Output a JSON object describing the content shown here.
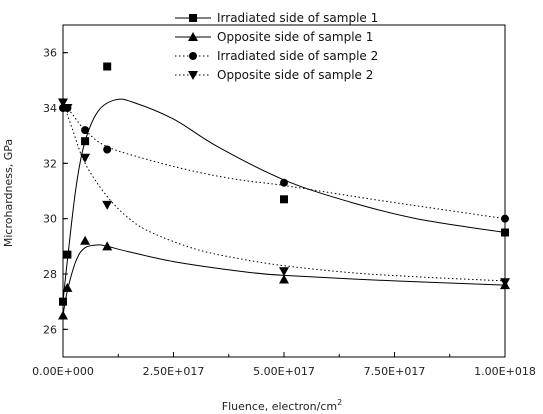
{
  "chart_data": {
    "type": "scatter",
    "title": "",
    "xlabel": "Fluence, electron/cm",
    "xlabel_superscript": "2",
    "ylabel": "Microhardness, GPa",
    "xlim": [
      0,
      1e+18
    ],
    "ylim": [
      25,
      37
    ],
    "x_ticks": [
      0,
      2.5e+17,
      5e+17,
      7.5e+17,
      1e+18
    ],
    "x_tick_labels": [
      "0.00E+000",
      "2.50E+017",
      "5.00E+017",
      "7.50E+017",
      "1.00E+018"
    ],
    "y_ticks": [
      26,
      28,
      30,
      32,
      34,
      36
    ],
    "y_tick_labels": [
      "26",
      "28",
      "30",
      "32",
      "34",
      "36"
    ],
    "grid": false,
    "legend_position": "top",
    "series": [
      {
        "name": "Irradiated side of sample 1",
        "marker": "square",
        "line_style": "solid",
        "x": [
          0,
          1e+16,
          5e+16,
          1e+17,
          5e+17,
          1e+18
        ],
        "y": [
          27.0,
          28.7,
          32.8,
          35.5,
          30.7,
          29.5
        ],
        "fit_curve": {
          "x": [
            0,
            1e+16,
            3e+16,
            5e+16,
            8e+16,
            1.2e+17,
            1.6e+17,
            2.5e+17,
            3.5e+17,
            5e+17,
            6.5e+17,
            8e+17,
            1e+18
          ],
          "y": [
            27.0,
            28.5,
            31.2,
            32.8,
            33.9,
            34.3,
            34.2,
            33.6,
            32.6,
            31.4,
            30.6,
            30.0,
            29.5
          ]
        }
      },
      {
        "name": "Opposite side of sample 1",
        "marker": "triangle-up",
        "line_style": "solid",
        "x": [
          0,
          1e+16,
          5e+16,
          1e+17,
          5e+17,
          1e+18
        ],
        "y": [
          26.5,
          27.5,
          29.2,
          29.0,
          27.8,
          27.6
        ],
        "fit_curve": {
          "x": [
            0,
            1e+16,
            3e+16,
            5e+16,
            8e+16,
            1e+17,
            1.5e+17,
            2.5e+17,
            4e+17,
            5e+17,
            7.5e+17,
            1e+18
          ],
          "y": [
            26.5,
            27.4,
            28.5,
            28.95,
            29.05,
            29.0,
            28.8,
            28.45,
            28.1,
            27.95,
            27.75,
            27.6
          ]
        }
      },
      {
        "name": "Irradiated side of sample  2",
        "marker": "circle",
        "line_style": "dotted",
        "x": [
          0,
          1e+16,
          5e+16,
          1e+17,
          5e+17,
          1e+18
        ],
        "y": [
          34.0,
          34.0,
          33.2,
          32.5,
          31.3,
          30.0
        ],
        "fit_curve": {
          "x": [
            0,
            2e+16,
            5e+16,
            1e+17,
            2e+17,
            3e+17,
            4e+17,
            5e+17,
            7e+17,
            8.5e+17,
            1e+18
          ],
          "y": [
            34.2,
            33.8,
            33.2,
            32.6,
            32.1,
            31.7,
            31.4,
            31.2,
            30.7,
            30.35,
            30.0
          ]
        }
      },
      {
        "name": "Opposite side of sample 2",
        "marker": "triangle-down",
        "line_style": "dotted",
        "x": [
          0,
          1e+16,
          5e+16,
          1e+17,
          5e+17,
          1e+18
        ],
        "y": [
          34.2,
          34.0,
          32.2,
          30.5,
          28.1,
          27.7
        ],
        "fit_curve": {
          "x": [
            0,
            2e+16,
            5e+16,
            1e+17,
            1.5e+17,
            2e+17,
            3e+17,
            4e+17,
            5e+17,
            6.5e+17,
            8e+17,
            1e+18
          ],
          "y": [
            34.2,
            33.3,
            32.0,
            30.8,
            30.0,
            29.5,
            28.9,
            28.55,
            28.3,
            28.05,
            27.9,
            27.75
          ]
        }
      }
    ]
  }
}
